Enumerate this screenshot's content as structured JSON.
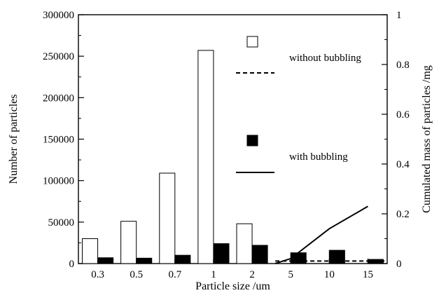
{
  "chart_data": {
    "type": "bar",
    "categories": [
      "0.3",
      "0.5",
      "0.7",
      "1",
      "2",
      "5",
      "10",
      "15"
    ],
    "xlabel": "Particle size /um",
    "ylabel": "Number of particles",
    "y2label": "Cumulated mass of particles /mg",
    "ylim": [
      0,
      300000
    ],
    "y2lim": [
      0,
      1
    ],
    "yticks": [
      "0",
      "50000",
      "100000",
      "150000",
      "200000",
      "250000",
      "300000"
    ],
    "y2ticks": [
      "0",
      "0.2",
      "0.4",
      "0.6",
      "0.8",
      "1"
    ],
    "grid": false,
    "legend_position": "upper-right inside plot",
    "series": [
      {
        "name": "without bubbling",
        "kind": "bar",
        "style": "open",
        "fill": "#ffffff",
        "values": [
          30000,
          51000,
          109000,
          257000,
          48000,
          0,
          0,
          0
        ]
      },
      {
        "name": "with bubbling",
        "kind": "bar",
        "style": "filled",
        "fill": "#000000",
        "values": [
          7000,
          6500,
          10000,
          24000,
          22000,
          13000,
          16000,
          5000
        ]
      },
      {
        "name": "without bubbling",
        "kind": "line",
        "axis": "right",
        "dash": "dashed",
        "x": [
          4.6,
          5,
          6,
          7.5
        ],
        "values": [
          0.01,
          0.01,
          0.01,
          0.01
        ]
      },
      {
        "name": "with bubbling",
        "kind": "line",
        "axis": "right",
        "dash": "solid",
        "x": [
          4.6,
          5,
          6,
          7
        ],
        "values": [
          0.0,
          0.02,
          0.14,
          0.23
        ]
      }
    ],
    "legend": [
      {
        "label": "without bubbling",
        "kind": "bar-open"
      },
      {
        "label": "without bubbling",
        "kind": "line-dashed",
        "show_label": false
      },
      {
        "label": "with bubbling",
        "kind": "bar-filled"
      },
      {
        "label": "with bubbling",
        "kind": "line-solid",
        "show_label": false
      }
    ]
  }
}
